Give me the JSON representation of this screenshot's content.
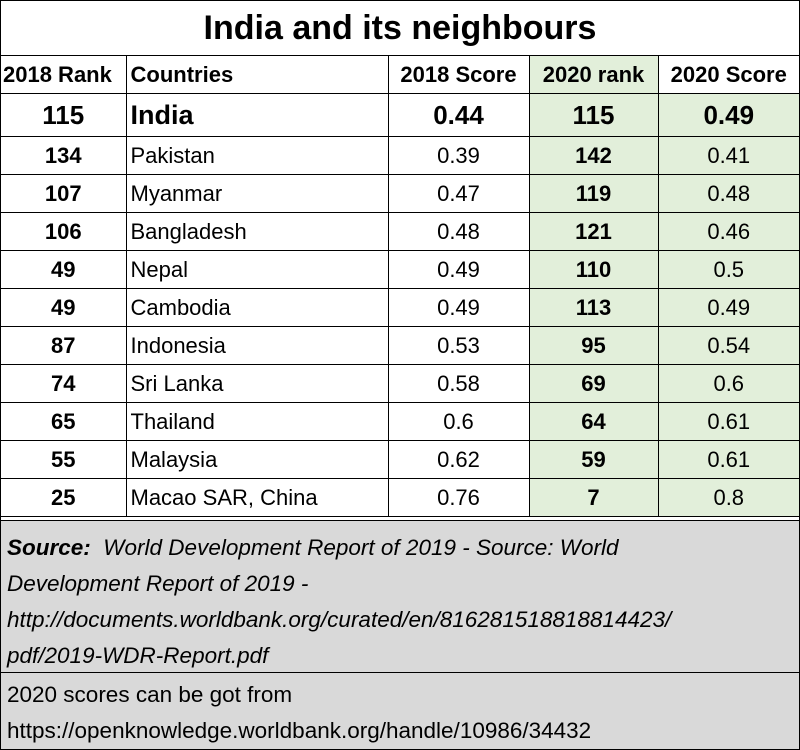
{
  "title": "India and its neighbours",
  "headers": {
    "rank_2018": "2018 Rank",
    "countries": "Countries",
    "score_2018": "2018 Score",
    "rank_2020": "2020 rank",
    "score_2020": "2020 Score"
  },
  "rows": [
    {
      "rank_2018": "115",
      "country": "India",
      "score_2018": "0.44",
      "rank_2020": "115",
      "score_2020": "0.49"
    },
    {
      "rank_2018": "134",
      "country": "Pakistan",
      "score_2018": "0.39",
      "rank_2020": "142",
      "score_2020": "0.41"
    },
    {
      "rank_2018": "107",
      "country": "Myanmar",
      "score_2018": "0.47",
      "rank_2020": "119",
      "score_2020": "0.48"
    },
    {
      "rank_2018": "106",
      "country": "Bangladesh",
      "score_2018": "0.48",
      "rank_2020": "121",
      "score_2020": "0.46"
    },
    {
      "rank_2018": "49",
      "country": "Nepal",
      "score_2018": "0.49",
      "rank_2020": "110",
      "score_2020": "0.5"
    },
    {
      "rank_2018": "49",
      "country": "Cambodia",
      "score_2018": "0.49",
      "rank_2020": "113",
      "score_2020": "0.49"
    },
    {
      "rank_2018": "87",
      "country": "Indonesia",
      "score_2018": "0.53",
      "rank_2020": "95",
      "score_2020": "0.54"
    },
    {
      "rank_2018": "74",
      "country": "Sri Lanka",
      "score_2018": "0.58",
      "rank_2020": "69",
      "score_2020": "0.6"
    },
    {
      "rank_2018": "65",
      "country": "Thailand",
      "score_2018": "0.6",
      "rank_2020": "64",
      "score_2020": "0.61"
    },
    {
      "rank_2018": "55",
      "country": "Malaysia",
      "score_2018": "0.62",
      "rank_2020": "59",
      "score_2020": "0.61"
    },
    {
      "rank_2018": "25",
      "country": "Macao SAR, China",
      "score_2018": "0.76",
      "rank_2020": "7",
      "score_2020": "0.8"
    }
  ],
  "source": {
    "label": "Source:",
    "line1": "World Development Report of 2019 - Source: World",
    "line2": "Development Report of 2019 -",
    "line3": "http://documents.worldbank.org/curated/en/816281518818814423/",
    "line4": "pdf/2019-WDR-Report.pdf"
  },
  "note": {
    "line1": "2020 scores can be got from",
    "line2": "https://openknowledge.worldbank.org/handle/10986/34432"
  },
  "colors": {
    "highlight_2020": "#e2efda",
    "footer_background": "#d9d9d9"
  }
}
